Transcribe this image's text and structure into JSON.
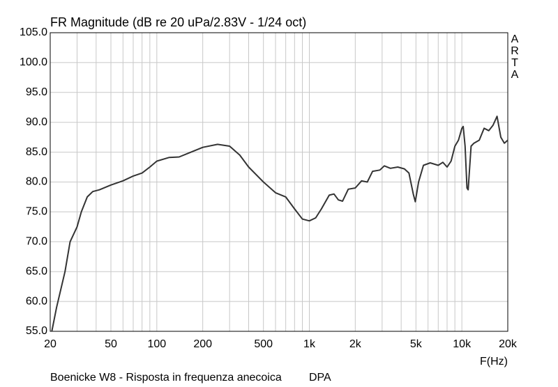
{
  "chart_data": {
    "type": "line",
    "title": "FR Magnitude (dB re 20 uPa/2.83V - 1/24 oct)",
    "x_label": "F(Hz)",
    "side_text": [
      "A",
      "R",
      "T",
      "A"
    ],
    "caption": "Boenicke W8 - Risposta in frequenza anecoica",
    "caption_right": "DPA",
    "log_x": true,
    "grid": true,
    "xlim": [
      20,
      20000
    ],
    "ylim": [
      55,
      105
    ],
    "xticks": [
      20,
      50,
      100,
      200,
      500,
      {
        "value": 1000,
        "label": "1k"
      },
      {
        "value": 2000,
        "label": "2k"
      },
      {
        "value": 5000,
        "label": "5k"
      },
      {
        "value": 10000,
        "label": "10k"
      },
      {
        "value": 20000,
        "label": "20k"
      }
    ],
    "xminorticks": [
      30,
      40,
      60,
      70,
      80,
      90,
      300,
      400,
      600,
      700,
      800,
      900,
      3000,
      4000,
      6000,
      7000,
      8000,
      9000
    ],
    "yticks": [
      {
        "value": 55,
        "label": "55.0"
      },
      {
        "value": 60,
        "label": "60.0"
      },
      {
        "value": 65,
        "label": "65.0"
      },
      {
        "value": 70,
        "label": "70.0"
      },
      {
        "value": 75,
        "label": "75.0"
      },
      {
        "value": 80,
        "label": "80.0"
      },
      {
        "value": 85,
        "label": "85.0"
      },
      {
        "value": 90,
        "label": "90.0"
      },
      {
        "value": 95,
        "label": "95.0"
      },
      {
        "value": 100,
        "label": "100.0"
      },
      {
        "value": 105,
        "label": "105.0"
      }
    ],
    "x": [
      20.5,
      22,
      25,
      27,
      30,
      32,
      35,
      38,
      42,
      50,
      60,
      70,
      80,
      90,
      100,
      120,
      140,
      160,
      200,
      250,
      300,
      350,
      400,
      500,
      600,
      700,
      800,
      900,
      1000,
      1100,
      1200,
      1350,
      1450,
      1550,
      1650,
      1800,
      2000,
      2200,
      2400,
      2600,
      2900,
      3100,
      3400,
      3800,
      4200,
      4500,
      4800,
      4950,
      5200,
      5600,
      6200,
      7000,
      7500,
      8000,
      8500,
      9000,
      9500,
      10000,
      10200,
      10500,
      10800,
      11000,
      11500,
      12000,
      13000,
      14000,
      15000,
      16000,
      17000,
      18000,
      19000,
      20000
    ],
    "series": [
      {
        "name": "FR",
        "color": "#333333",
        "values": [
          55,
          59,
          65,
          70,
          72.5,
          75,
          77.5,
          78.4,
          78.7,
          79.5,
          80.2,
          81,
          81.5,
          82.5,
          83.5,
          84.1,
          84.2,
          84.8,
          85.8,
          86.3,
          86,
          84.5,
          82.5,
          80,
          78.2,
          77.5,
          75.5,
          73.8,
          73.5,
          74,
          75.5,
          77.8,
          78,
          77,
          76.8,
          78.8,
          79,
          80.2,
          80,
          81.8,
          82,
          82.7,
          82.3,
          82.5,
          82.2,
          81.5,
          78,
          76.7,
          80,
          82.8,
          83.2,
          82.8,
          83.3,
          82.5,
          83.5,
          86,
          87,
          89,
          89.3,
          86,
          79,
          78.7,
          86,
          86.5,
          87,
          89,
          88.6,
          89.5,
          91,
          87.5,
          86.5,
          87
        ]
      }
    ]
  }
}
